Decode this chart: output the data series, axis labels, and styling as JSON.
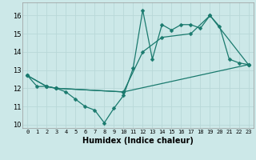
{
  "xlabel": "Humidex (Indice chaleur)",
  "bg_color": "#cce8e8",
  "grid_color": "#b8d8d8",
  "line_color": "#1a7a6e",
  "xlim": [
    -0.5,
    23.5
  ],
  "ylim": [
    9.8,
    16.7
  ],
  "yticks": [
    10,
    11,
    12,
    13,
    14,
    15,
    16
  ],
  "xticks": [
    0,
    1,
    2,
    3,
    4,
    5,
    6,
    7,
    8,
    9,
    10,
    11,
    12,
    13,
    14,
    15,
    16,
    17,
    18,
    19,
    20,
    21,
    22,
    23
  ],
  "line1_x": [
    0,
    1,
    2,
    3,
    4,
    5,
    6,
    7,
    8,
    9,
    10,
    11,
    12,
    13,
    14,
    15,
    16,
    17,
    18,
    19,
    20,
    21,
    22,
    23
  ],
  "line1_y": [
    12.7,
    12.1,
    12.1,
    12.0,
    11.8,
    11.4,
    11.0,
    10.8,
    10.1,
    10.9,
    11.6,
    13.1,
    16.3,
    13.6,
    15.5,
    15.2,
    15.5,
    15.5,
    15.3,
    16.0,
    15.4,
    13.6,
    13.4,
    13.3
  ],
  "line2_x": [
    0,
    2,
    3,
    10,
    12,
    14,
    17,
    19,
    23
  ],
  "line2_y": [
    12.7,
    12.1,
    12.0,
    11.8,
    14.0,
    14.8,
    15.0,
    16.0,
    13.3
  ],
  "line3_x": [
    0,
    2,
    3,
    10,
    23
  ],
  "line3_y": [
    12.7,
    12.1,
    12.0,
    11.8,
    13.3
  ],
  "marker_size": 2.5,
  "linewidth": 0.9
}
